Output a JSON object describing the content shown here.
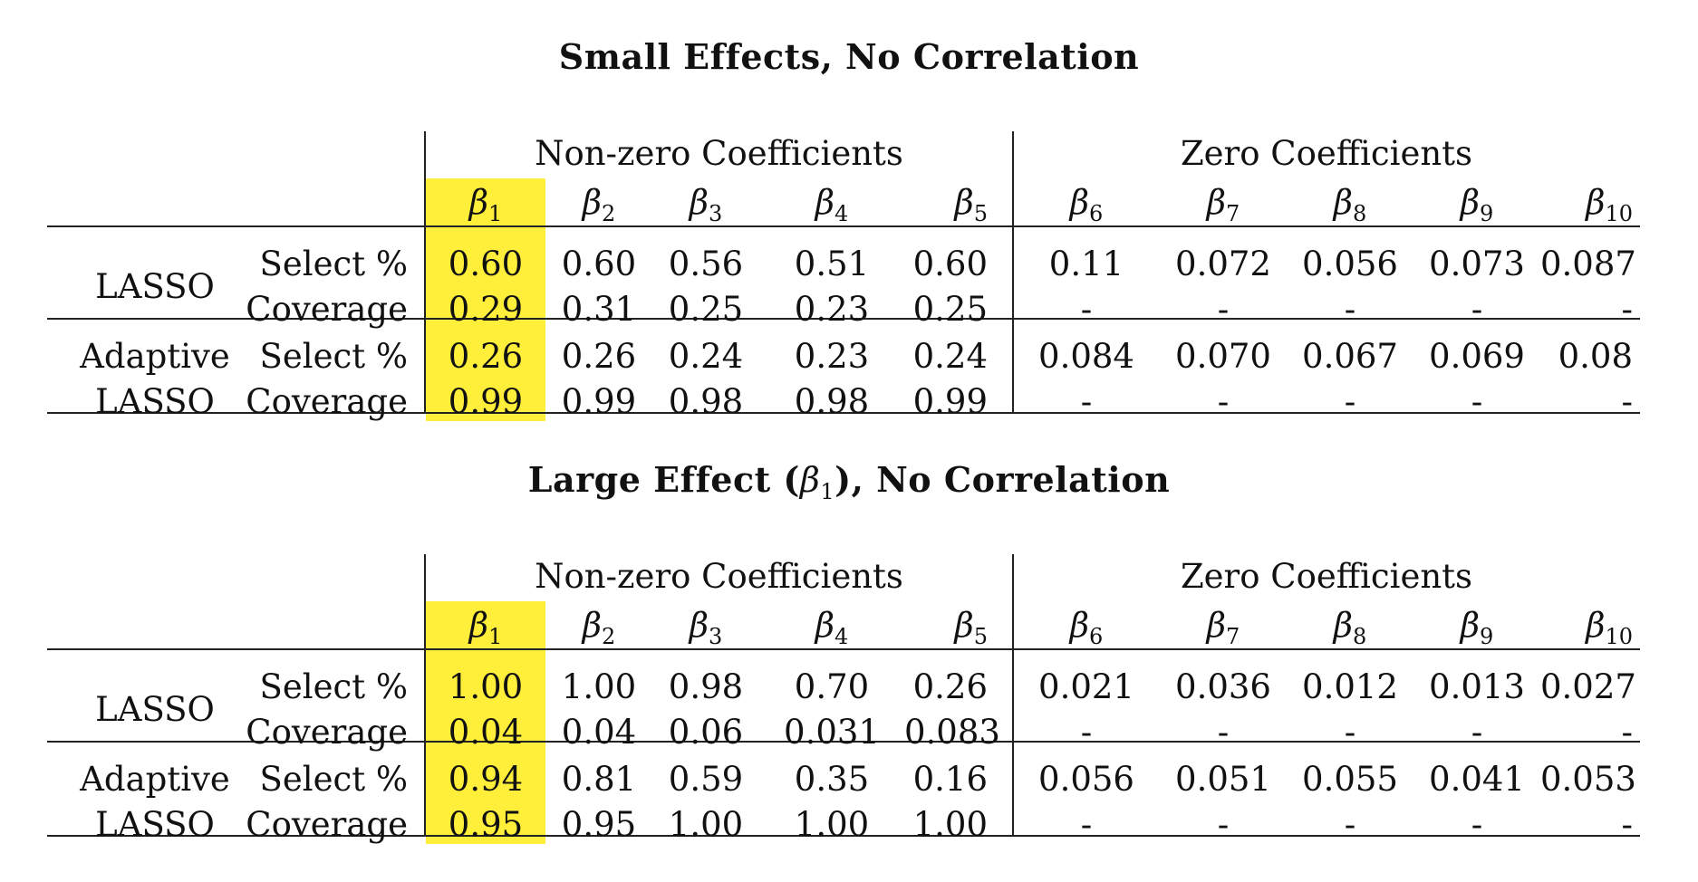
{
  "tables": [
    {
      "title": "Small Effects, No Correlation",
      "title_parts": {
        "pre": "Small Effects, No Correlation",
        "beta": "",
        "post": ""
      },
      "group_nonzero": "Non-zero Coefficients",
      "group_zero": "Zero Coefficients",
      "coef_symbol": "β",
      "coef_indices": [
        "1",
        "2",
        "3",
        "4",
        "5",
        "6",
        "7",
        "8",
        "9",
        "10"
      ],
      "methods": [
        {
          "name_line1": "LASSO",
          "name_line2": "",
          "rows": [
            {
              "metric": "Select %",
              "values": [
                "0.60",
                "0.60",
                "0.56",
                "0.51",
                "0.60",
                "0.11",
                "0.072",
                "0.056",
                "0.073",
                "0.087"
              ]
            },
            {
              "metric": "Coverage",
              "values": [
                "0.29",
                "0.31",
                "0.25",
                "0.23",
                "0.25",
                "-",
                "-",
                "-",
                "-",
                "-"
              ]
            }
          ]
        },
        {
          "name_line1": "Adaptive",
          "name_line2": "LASSO",
          "rows": [
            {
              "metric": "Select %",
              "values": [
                "0.26",
                "0.26",
                "0.24",
                "0.23",
                "0.24",
                "0.084",
                "0.070",
                "0.067",
                "0.069",
                "0.08"
              ]
            },
            {
              "metric": "Coverage",
              "values": [
                "0.99",
                "0.99",
                "0.98",
                "0.98",
                "0.99",
                "-",
                "-",
                "-",
                "-",
                "-"
              ]
            }
          ]
        }
      ]
    },
    {
      "title": "Large Effect (β1), No Correlation",
      "title_parts": {
        "pre": "Large Effect (",
        "beta": "β",
        "beta_index": "1",
        "post": "), No Correlation"
      },
      "group_nonzero": "Non-zero Coefficients",
      "group_zero": "Zero Coefficients",
      "coef_symbol": "β",
      "coef_indices": [
        "1",
        "2",
        "3",
        "4",
        "5",
        "6",
        "7",
        "8",
        "9",
        "10"
      ],
      "methods": [
        {
          "name_line1": "LASSO",
          "name_line2": "",
          "rows": [
            {
              "metric": "Select %",
              "values": [
                "1.00",
                "1.00",
                "0.98",
                "0.70",
                "0.26",
                "0.021",
                "0.036",
                "0.012",
                "0.013",
                "0.027"
              ]
            },
            {
              "metric": "Coverage",
              "values": [
                "0.04",
                "0.04",
                "0.06",
                "0.031",
                "0.083",
                "-",
                "-",
                "-",
                "-",
                "-"
              ]
            }
          ]
        },
        {
          "name_line1": "Adaptive",
          "name_line2": "LASSO",
          "rows": [
            {
              "metric": "Select %",
              "values": [
                "0.94",
                "0.81",
                "0.59",
                "0.35",
                "0.16",
                "0.056",
                "0.051",
                "0.055",
                "0.041",
                "0.053"
              ]
            },
            {
              "metric": "Coverage",
              "values": [
                "0.95",
                "0.95",
                "1.00",
                "1.00",
                "1.00",
                "-",
                "-",
                "-",
                "-",
                "-"
              ]
            }
          ]
        }
      ]
    }
  ],
  "highlight_color": "#ffee3a"
}
